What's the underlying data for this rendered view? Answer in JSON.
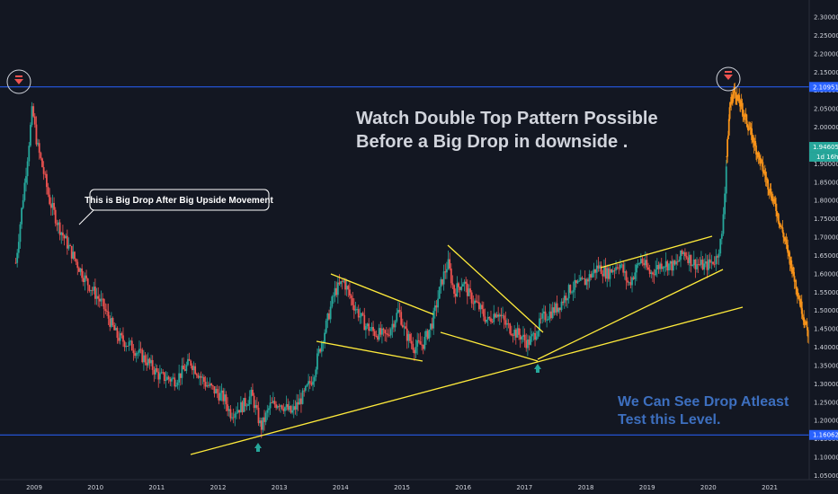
{
  "chart_data": {
    "type": "candlestick",
    "xlim": [
      2009,
      2021.7
    ],
    "ylim": [
      1.05,
      2.32
    ],
    "y_ticks": [
      "2.30000",
      "2.25000",
      "2.20000",
      "2.15000",
      "2.10000",
      "2.05000",
      "2.00000",
      "1.95000",
      "1.90000",
      "1.85000",
      "1.80000",
      "1.75000",
      "1.70000",
      "1.65000",
      "1.60000",
      "1.55000",
      "1.50000",
      "1.45000",
      "1.40000",
      "1.35000",
      "1.30000",
      "1.25000",
      "1.20000",
      "1.15000",
      "1.10000",
      "1.05000"
    ],
    "x_ticks": [
      "2009",
      "2010",
      "2011",
      "2012",
      "2013",
      "2014",
      "2015",
      "2016",
      "2017",
      "2018",
      "2019",
      "2020",
      "2021"
    ],
    "price_tags": [
      {
        "label": "2.10951",
        "value": 2.10951,
        "color": "#2962ff"
      },
      {
        "label": "1.94605",
        "value": 1.94605,
        "color": "#26a69a",
        "sub": "1d 16h"
      },
      {
        "label": "1.16062",
        "value": 1.16062,
        "color": "#2962ff"
      }
    ],
    "colors": {
      "up": "#26a69a",
      "down": "#ef5350",
      "projection": "#f7931a",
      "trendline": "#ffeb3b",
      "hline": "#2962ff"
    },
    "keypoints": [
      [
        2008.7,
        1.63
      ],
      [
        2008.88,
        1.9
      ],
      [
        2008.97,
        2.05
      ],
      [
        2009.05,
        1.95
      ],
      [
        2009.15,
        1.88
      ],
      [
        2009.25,
        1.8
      ],
      [
        2009.4,
        1.73
      ],
      [
        2009.6,
        1.66
      ],
      [
        2009.85,
        1.58
      ],
      [
        2010.1,
        1.52
      ],
      [
        2010.35,
        1.43
      ],
      [
        2010.6,
        1.4
      ],
      [
        2010.85,
        1.36
      ],
      [
        2011.05,
        1.32
      ],
      [
        2011.3,
        1.31
      ],
      [
        2011.55,
        1.36
      ],
      [
        2011.8,
        1.3
      ],
      [
        2012.1,
        1.26
      ],
      [
        2012.2,
        1.22
      ],
      [
        2012.4,
        1.24
      ],
      [
        2012.55,
        1.27
      ],
      [
        2012.65,
        1.21
      ],
      [
        2012.7,
        1.18
      ],
      [
        2012.85,
        1.24
      ],
      [
        2013.0,
        1.25
      ],
      [
        2013.2,
        1.22
      ],
      [
        2013.4,
        1.27
      ],
      [
        2013.55,
        1.32
      ],
      [
        2013.65,
        1.39
      ],
      [
        2013.75,
        1.45
      ],
      [
        2013.9,
        1.55
      ],
      [
        2014.05,
        1.58
      ],
      [
        2014.2,
        1.52
      ],
      [
        2014.4,
        1.46
      ],
      [
        2014.55,
        1.44
      ],
      [
        2014.75,
        1.43
      ],
      [
        2014.95,
        1.5
      ],
      [
        2015.05,
        1.44
      ],
      [
        2015.2,
        1.4
      ],
      [
        2015.35,
        1.41
      ],
      [
        2015.5,
        1.47
      ],
      [
        2015.65,
        1.58
      ],
      [
        2015.75,
        1.63
      ],
      [
        2015.85,
        1.55
      ],
      [
        2016.0,
        1.58
      ],
      [
        2016.1,
        1.54
      ],
      [
        2016.25,
        1.51
      ],
      [
        2016.4,
        1.47
      ],
      [
        2016.55,
        1.5
      ],
      [
        2016.7,
        1.46
      ],
      [
        2016.85,
        1.44
      ],
      [
        2016.95,
        1.43
      ],
      [
        2017.05,
        1.41
      ],
      [
        2017.15,
        1.43
      ],
      [
        2017.3,
        1.48
      ],
      [
        2017.55,
        1.51
      ],
      [
        2017.75,
        1.56
      ],
      [
        2018.0,
        1.58
      ],
      [
        2018.2,
        1.62
      ],
      [
        2018.35,
        1.6
      ],
      [
        2018.55,
        1.63
      ],
      [
        2018.7,
        1.57
      ],
      [
        2018.9,
        1.64
      ],
      [
        2019.05,
        1.6
      ],
      [
        2019.25,
        1.63
      ],
      [
        2019.45,
        1.62
      ],
      [
        2019.6,
        1.66
      ],
      [
        2019.75,
        1.63
      ],
      [
        2019.95,
        1.62
      ],
      [
        2020.12,
        1.64
      ],
      [
        2020.22,
        1.7
      ],
      [
        2020.3,
        1.92
      ]
    ],
    "projection_keypoints": [
      [
        2020.3,
        1.92
      ],
      [
        2020.35,
        2.06
      ],
      [
        2020.42,
        2.1
      ],
      [
        2020.55,
        2.05
      ],
      [
        2020.7,
        1.98
      ],
      [
        2020.9,
        1.88
      ],
      [
        2021.1,
        1.78
      ],
      [
        2021.3,
        1.66
      ],
      [
        2021.5,
        1.52
      ],
      [
        2021.65,
        1.42
      ],
      [
        2021.7,
        1.4
      ]
    ]
  },
  "annotations": {
    "headline_line1": "Watch Double Top Pattern  Possible",
    "headline_line2": "Before a Big Drop in downside .",
    "callout": "This is Big Drop After Big Upside Movement",
    "bottom_line1": "We Can See Drop Atleast",
    "bottom_line2": "Test this  Level."
  }
}
